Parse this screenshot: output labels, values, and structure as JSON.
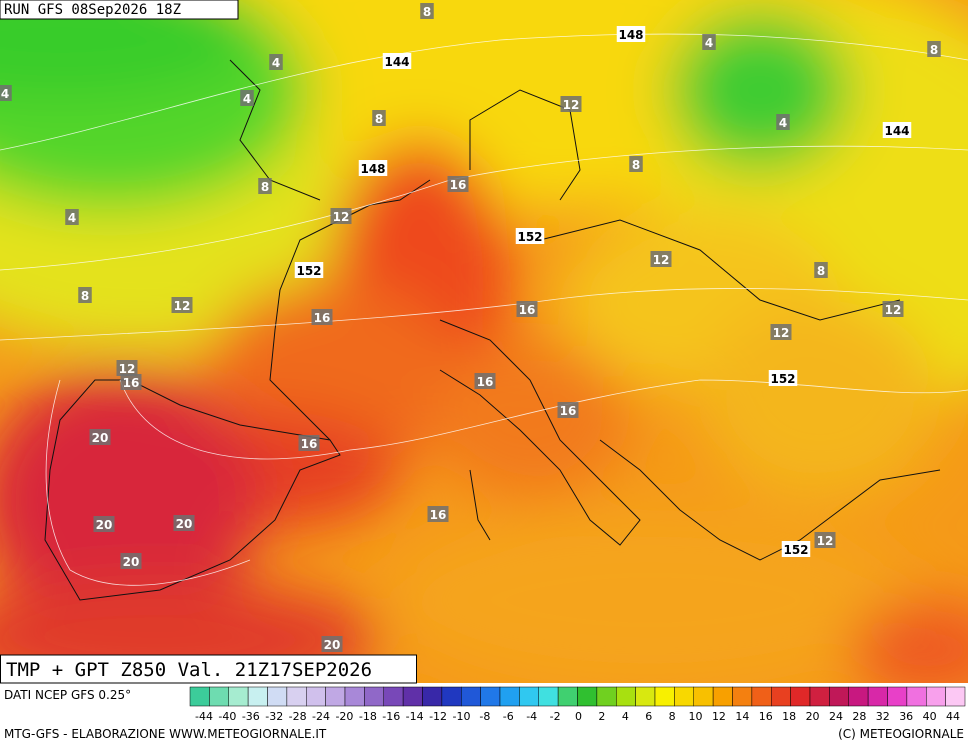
{
  "header": {
    "run": "RUN GFS 08Sep2026 18Z"
  },
  "map": {
    "labels": [
      "8",
      "148",
      "4",
      "8",
      "144",
      "4",
      "4",
      "4",
      "12",
      "8",
      "4",
      "144",
      "8",
      "148",
      "16",
      "8",
      "12",
      "4",
      "152",
      "12",
      "152",
      "8",
      "8",
      "12",
      "12",
      "16",
      "16",
      "12",
      "12",
      "16",
      "152",
      "16",
      "16",
      "20",
      "16",
      "16",
      "20",
      "20",
      "152",
      "12",
      "20",
      "20"
    ]
  },
  "title": "TMP + GPT Z850 Val. 21Z17SEP2026",
  "legend": {
    "source": "DATI NCEP GFS 0.25°",
    "ticks": [
      "-44",
      "-40",
      "-36",
      "-32",
      "-28",
      "-24",
      "-20",
      "-18",
      "-16",
      "-14",
      "-12",
      "-10",
      "-8",
      "-6",
      "-4",
      "-2",
      "0",
      "2",
      "4",
      "6",
      "8",
      "10",
      "12",
      "14",
      "16",
      "18",
      "20",
      "24",
      "28",
      "32",
      "36",
      "40",
      "44"
    ]
  },
  "footer": {
    "left": "MTG-GFS - ELABORAZIONE WWW.METEOGIORNALE.IT",
    "right": "(C) METEOGIORNALE"
  }
}
